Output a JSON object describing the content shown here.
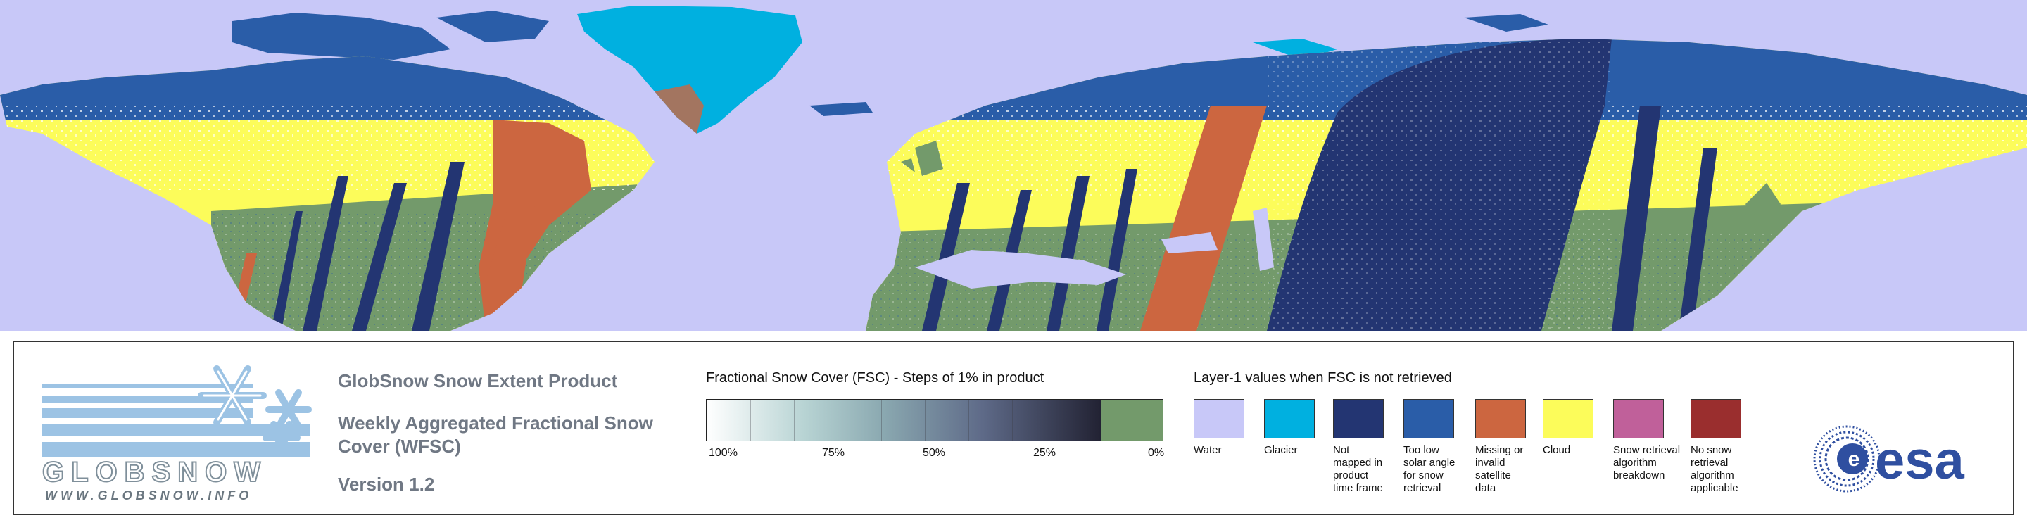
{
  "colors": {
    "water": "#c8c8f8",
    "glacier": "#00b0e0",
    "not_mapped": "#233572",
    "too_low_solar": "#2a5da8",
    "missing": "#cc6640",
    "cloud": "#fcfc5a",
    "algo_breakdown": "#c0609a",
    "no_snow_algo": "#9a2e2e",
    "no_snow_green": "#739a6b",
    "title_gray": "#707884",
    "globsnow_blue": "#9cc3e4"
  },
  "logo": {
    "wordmark": "GLOBSNOW",
    "url": "WWW.GLOBSNOW.INFO"
  },
  "titles": {
    "product": "GlobSnow Snow Extent Product",
    "weekly": "Weekly Aggregated Fractional Snow Cover (WFSC)",
    "version": "Version 1.2"
  },
  "fsc_legend": {
    "title": "Fractional Snow Cover (FSC) - Steps of 1% in product",
    "labels": [
      "100%",
      "75%",
      "50%",
      "25%",
      "0%"
    ]
  },
  "layer1_legend": {
    "title": "Layer-1 values when FSC is not retrieved",
    "items": [
      {
        "label": "Water",
        "color": "#c8c8f8"
      },
      {
        "label": "Glacier",
        "color": "#00b0e0"
      },
      {
        "label": "Not\nmapped in\nproduct\ntime frame",
        "color": "#233572"
      },
      {
        "label": "Too low\nsolar angle\nfor snow\nretrieval",
        "color": "#2a5da8"
      },
      {
        "label": "Missing or\ninvalid satellite\ndata",
        "color": "#cc6640"
      },
      {
        "label": "Cloud",
        "color": "#fcfc5a"
      },
      {
        "label": "Snow retrieval\nalgorithm\nbreakdown",
        "color": "#c0609a"
      },
      {
        "label": "No snow\nretrieval\nalgorithm\napplicable",
        "color": "#9a2e2e"
      }
    ]
  },
  "esa_logo": {
    "text": "esa"
  }
}
